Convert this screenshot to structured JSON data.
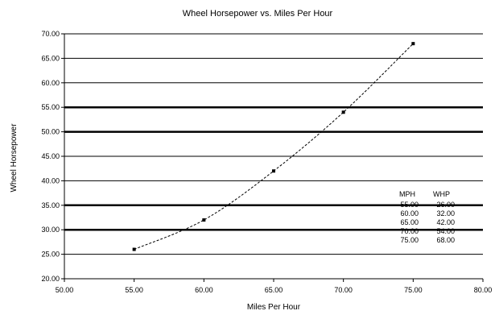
{
  "chart_data": {
    "type": "line",
    "title": "Wheel Horsepower vs. Miles Per Hour",
    "xlabel": "Miles Per Hour",
    "ylabel": "Wheel Horsepower",
    "xlim": [
      50,
      80
    ],
    "ylim": [
      20,
      70
    ],
    "x_ticks": [
      "50.00",
      "55.00",
      "60.00",
      "65.00",
      "70.00",
      "75.00",
      "80.00"
    ],
    "y_ticks": [
      "20.00",
      "25.00",
      "30.00",
      "35.00",
      "40.00",
      "45.00",
      "50.00",
      "55.00",
      "60.00",
      "65.00",
      "70.00"
    ],
    "grid": "horizontal",
    "line_color": "#000000",
    "series": [
      {
        "x": [
          55,
          60,
          65,
          70,
          75
        ],
        "y": [
          26,
          32,
          42,
          54,
          68
        ]
      }
    ],
    "table": {
      "headers": [
        "MPH",
        "WHP"
      ],
      "rows": [
        [
          "55.00",
          "26.00"
        ],
        [
          "60.00",
          "32.00"
        ],
        [
          "65.00",
          "42.00"
        ],
        [
          "70.00",
          "54.00"
        ],
        [
          "75.00",
          "68.00"
        ]
      ]
    }
  }
}
